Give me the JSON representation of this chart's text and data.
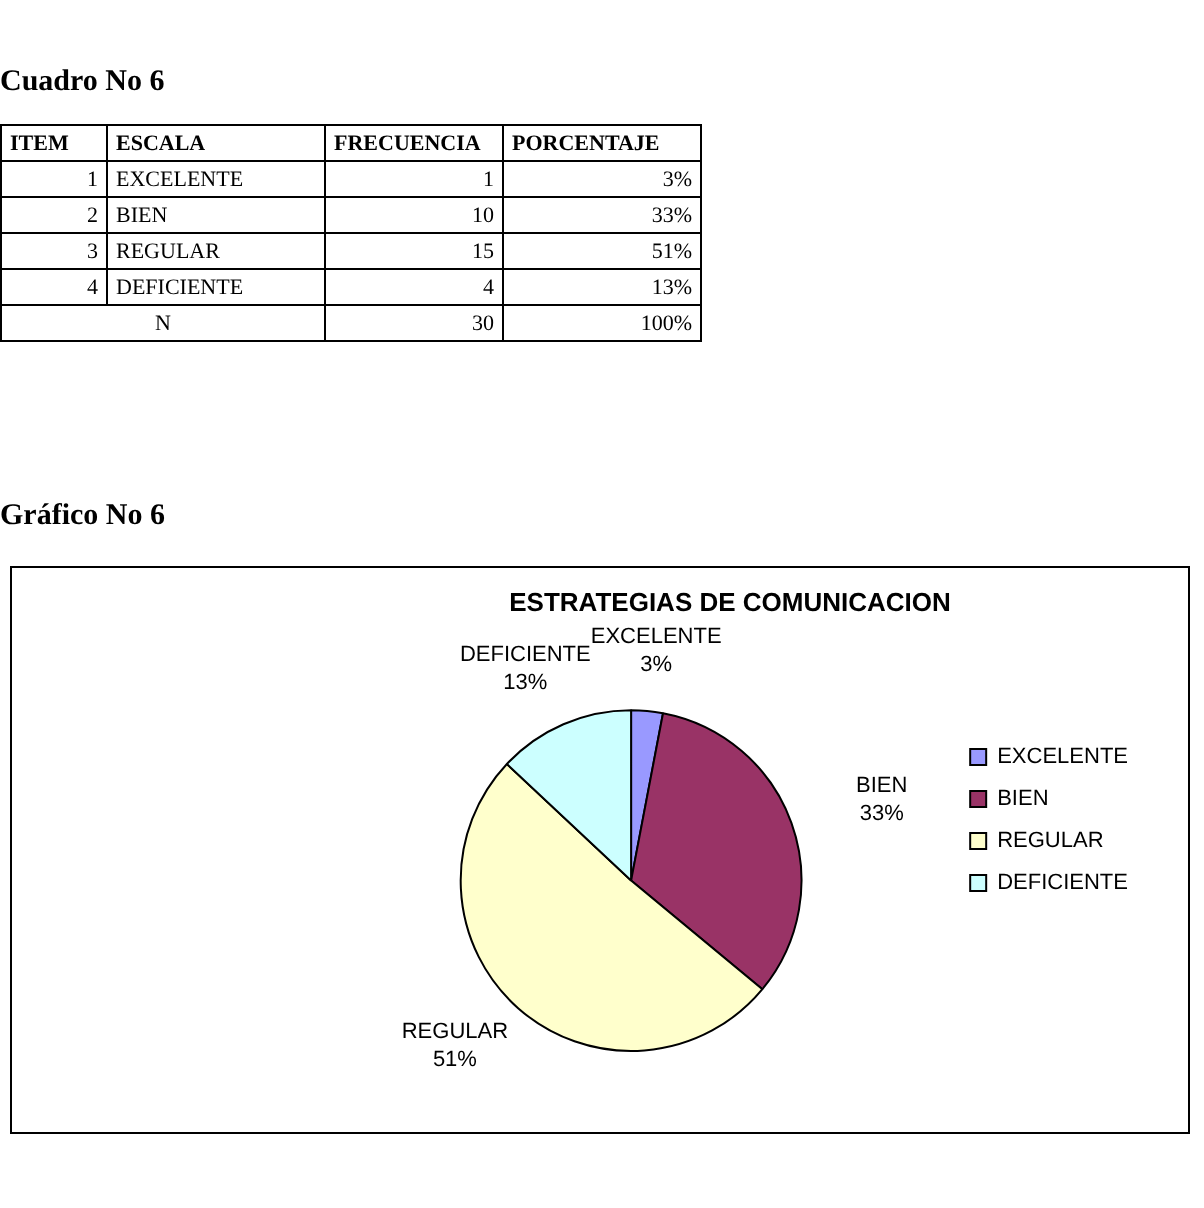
{
  "chart_data": {
    "type": "pie",
    "title": "ESTRATEGIAS DE COMUNICACION",
    "categories": [
      "EXCELENTE",
      "BIEN",
      "REGULAR",
      "DEFICIENTE"
    ],
    "values": [
      3,
      33,
      51,
      13
    ],
    "colors": [
      "#9999ff",
      "#993366",
      "#ffffcc",
      "#ccffff"
    ],
    "value_labels": [
      "3%",
      "33%",
      "51%",
      "13%"
    ],
    "legend": "right",
    "annotations": [
      "Cuadro No 6",
      "ITEM",
      "ESCALA",
      "FRECUENCIA",
      "PORCENTAJE",
      "1",
      "EXCELENTE",
      "1",
      "3%",
      "2",
      "BIEN",
      "10",
      "33%",
      "3",
      "REGULAR",
      "15",
      "51%",
      "4",
      "DEFICIENTE",
      "4",
      "13%",
      "N",
      "30",
      "100%",
      "Gráfico No 6"
    ]
  }
}
